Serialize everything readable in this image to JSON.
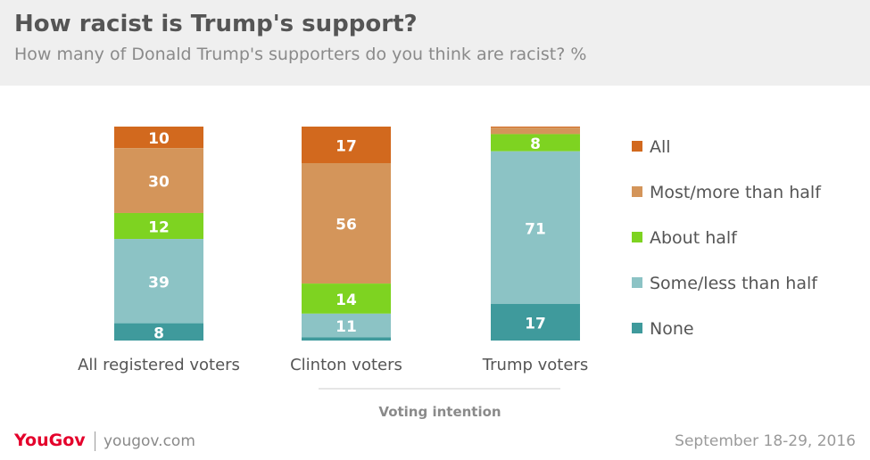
{
  "header": {
    "title": "How racist is Trump's support?",
    "subtitle": "How many of Donald Trump's supporters do you think are racist? %"
  },
  "chart_data": {
    "type": "bar",
    "stacked": true,
    "orientation": "vertical",
    "title": "How racist is Trump's support?",
    "subtitle": "How many of Donald Trump's supporters do you think are racist? %",
    "categories": [
      "All registered voters",
      "Clinton voters",
      "Trump voters"
    ],
    "xlabel": "Voting intention",
    "ylabel": "",
    "ylim": [
      0,
      100
    ],
    "grid": false,
    "legend_position": "right",
    "series": [
      {
        "name": "All",
        "color": "#d2691e",
        "values": [
          10,
          17,
          0.5
        ]
      },
      {
        "name": "Most/more than half",
        "color": "#d4955a",
        "values": [
          30,
          56,
          3
        ]
      },
      {
        "name": "About half",
        "color": "#7ed321",
        "values": [
          12,
          14,
          8
        ]
      },
      {
        "name": "Some/less than half",
        "color": "#8cc3c5",
        "values": [
          39,
          11,
          71
        ]
      },
      {
        "name": "None",
        "color": "#3f9a9c",
        "values": [
          8,
          1.5,
          17
        ]
      }
    ],
    "data_labels": [
      [
        "10",
        "30",
        "12",
        "39",
        "8"
      ],
      [
        "17",
        "56",
        "14",
        "11",
        ""
      ],
      [
        "",
        "",
        "8",
        "71",
        "17"
      ]
    ]
  },
  "footer": {
    "logo": "YouGov",
    "site": "yougov.com",
    "date": "September 18-29, 2016"
  }
}
